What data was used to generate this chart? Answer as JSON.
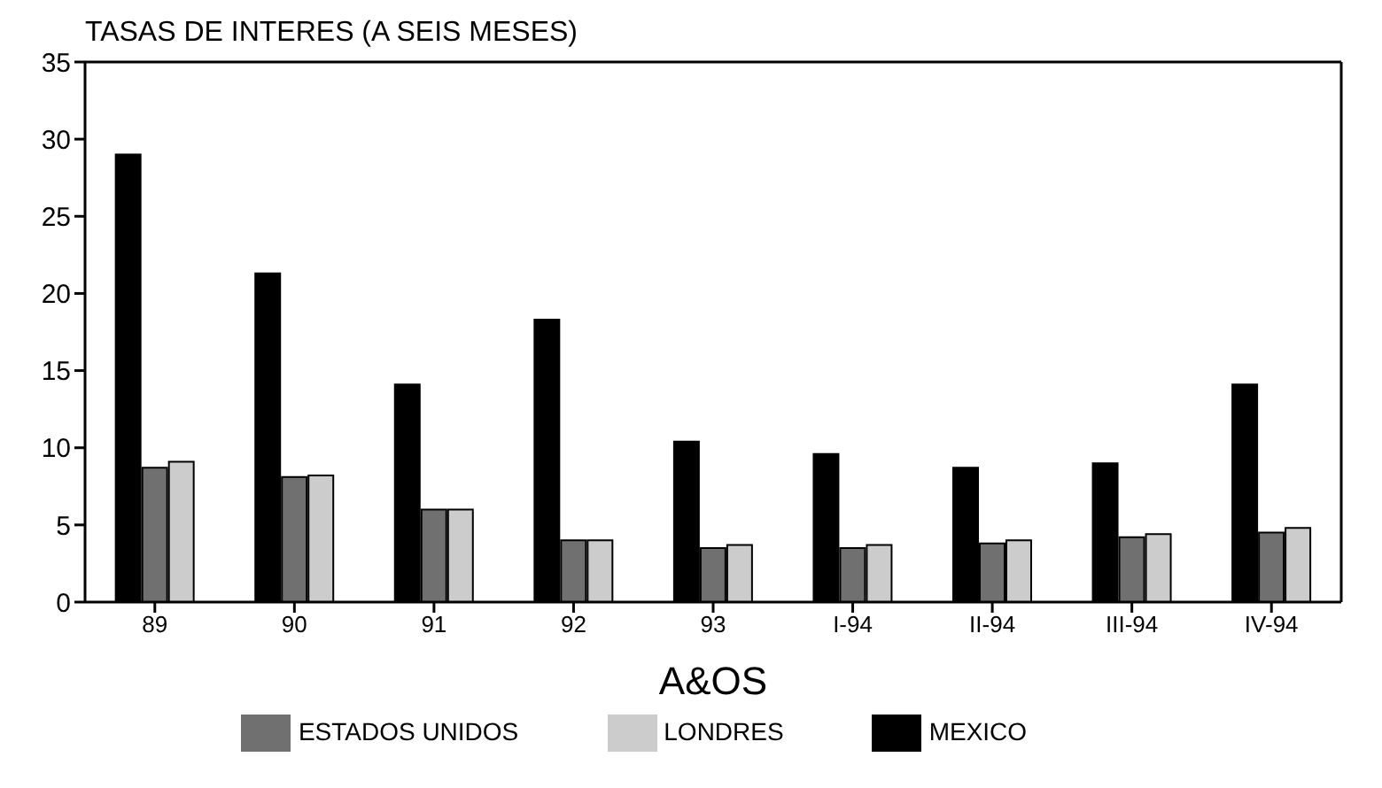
{
  "chart_data": {
    "type": "bar",
    "title": "TASAS DE INTERES (A SEIS MESES)",
    "xlabel": "A&OS",
    "categories": [
      "89",
      "90",
      "91",
      "92",
      "93",
      "I-94",
      "II-94",
      "III-94",
      "IV-94"
    ],
    "series": [
      {
        "name": "MEXICO",
        "color": "#000000",
        "values": [
          29,
          21.3,
          14.1,
          18.3,
          10.4,
          9.6,
          8.7,
          9.0,
          14.1
        ]
      },
      {
        "name": "ESTADOS UNIDOS",
        "color": "#707070",
        "values": [
          8.7,
          8.1,
          6.0,
          4.0,
          3.5,
          3.5,
          3.8,
          4.2,
          4.5
        ]
      },
      {
        "name": "LONDRES",
        "color": "#cccccc",
        "values": [
          9.1,
          8.2,
          6.0,
          4.0,
          3.7,
          3.7,
          4.0,
          4.4,
          4.8
        ]
      }
    ],
    "ylim": [
      0,
      35
    ],
    "yticks": [
      0,
      5,
      10,
      15,
      20,
      25,
      30,
      35
    ],
    "grid": false,
    "legend": "bottom"
  }
}
